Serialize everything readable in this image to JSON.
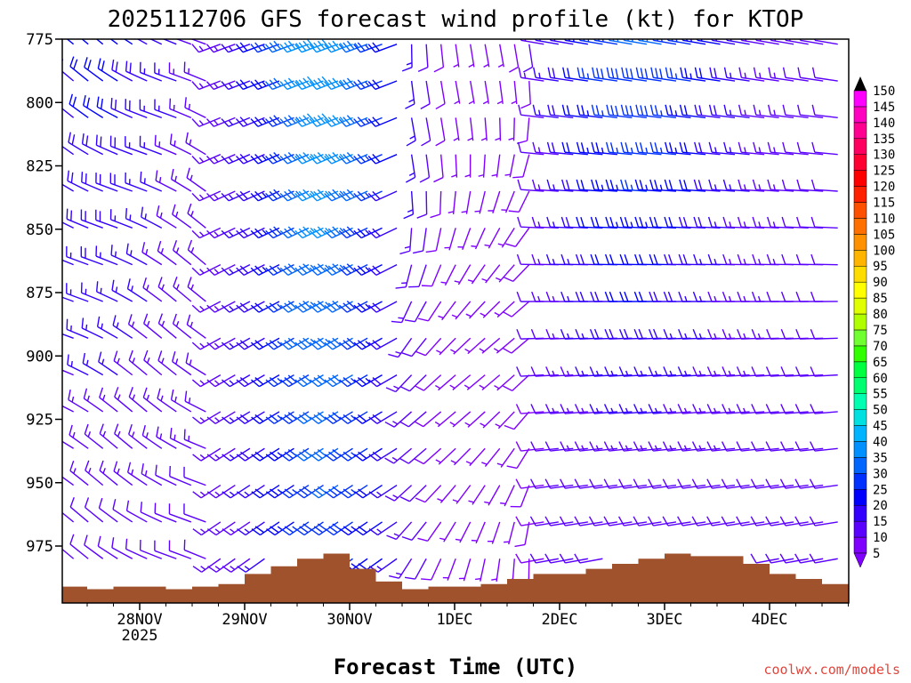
{
  "chart_data": {
    "type": "wind-barb-profile",
    "title": "2025112706 GFS forecast wind profile (kt) for KTOP",
    "xlabel": "Forecast Time (UTC)",
    "credit": "coolwx.com/models",
    "x_ticks": [
      "28NOV",
      "29NOV",
      "30NOV",
      "1DEC",
      "2DEC",
      "3DEC",
      "4DEC"
    ],
    "x_ticks_sub": [
      "2025",
      "",
      "",
      "",
      "",
      "",
      ""
    ],
    "y_ticks": [
      775,
      800,
      825,
      850,
      875,
      900,
      925,
      950,
      975
    ],
    "ylim_hpa": [
      775,
      996
    ],
    "y_inverted": true,
    "colorbar": {
      "unit": "kt",
      "levels": [
        5,
        10,
        15,
        20,
        25,
        30,
        35,
        40,
        45,
        50,
        55,
        60,
        65,
        70,
        75,
        80,
        85,
        90,
        95,
        100,
        105,
        110,
        115,
        120,
        125,
        130,
        135,
        140,
        145,
        150
      ],
      "colors": [
        "#7f00ff",
        "#5a00ff",
        "#3300ff",
        "#0000ff",
        "#0030ff",
        "#0066ff",
        "#0090ff",
        "#00b4ff",
        "#00e0e0",
        "#00ffb0",
        "#00ff70",
        "#00ff40",
        "#30ff00",
        "#70ff30",
        "#b0ff00",
        "#e0ff00",
        "#ffff00",
        "#ffdc00",
        "#ffb400",
        "#ff9000",
        "#ff7000",
        "#ff5000",
        "#ff2000",
        "#ff0000",
        "#ff0030",
        "#ff0060",
        "#ff0090",
        "#ff00c0",
        "#ff00ff",
        "#ff40ff"
      ]
    },
    "terrain_color": "#a0522d",
    "terrain_profile": {
      "day_offsets": [
        0,
        0.25,
        0.5,
        0.75,
        1,
        1.25,
        1.5,
        1.75,
        2,
        2.25,
        2.5,
        2.75,
        3,
        3.25,
        3.5,
        3.75,
        4,
        4.25,
        4.5,
        4.75,
        5,
        5.25,
        5.5,
        5.75,
        6,
        6.25,
        6.5,
        6.75,
        7,
        7.25,
        7.5
      ],
      "surface_hpa": [
        991,
        992,
        991,
        991,
        992,
        991,
        990,
        986,
        983,
        980,
        978,
        984,
        989,
        992,
        991,
        991,
        990,
        988,
        986,
        986,
        984,
        982,
        980,
        978,
        979,
        979,
        982,
        986,
        988,
        990,
        991
      ]
    },
    "wind_speed_kt": {
      "description": "Barb field: light (~5-15 kt, purple) winds Dec 1-2 near the surface and in the lower layers, stronger westerly/southwesterly (~25-45 kt, blue/cyan) aloft around 29-30 Nov and 2-3 Dec.",
      "max_kt": 45,
      "min_kt": 5
    }
  }
}
